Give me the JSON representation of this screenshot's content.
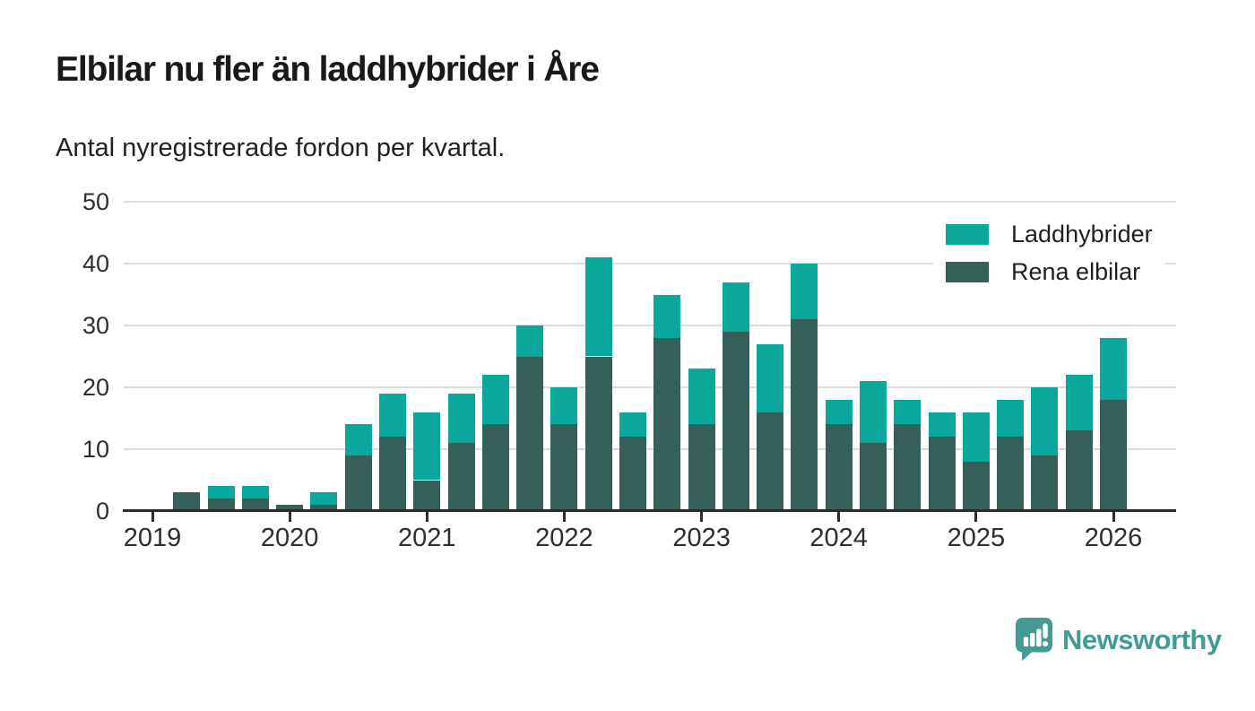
{
  "chart_data": {
    "type": "bar",
    "stacked": true,
    "title": "Elbilar nu fler än laddhybrider i Åre",
    "subtitle": "Antal nyregistrerade fordon per kvartal.",
    "categories": [
      "2019 Q1",
      "2019 Q2",
      "2019 Q3",
      "2019 Q4",
      "2020 Q1",
      "2020 Q2",
      "2020 Q3",
      "2020 Q4",
      "2021 Q1",
      "2021 Q2",
      "2021 Q3",
      "2021 Q4",
      "2022 Q1",
      "2022 Q2",
      "2022 Q3",
      "2022 Q4",
      "2023 Q1",
      "2023 Q2",
      "2023 Q3",
      "2023 Q4",
      "2024 Q1",
      "2024 Q2",
      "2024 Q3",
      "2024 Q4",
      "2025 Q1",
      "2025 Q2",
      "2025 Q3",
      "2025 Q4",
      "2026 Q1"
    ],
    "series": [
      {
        "name": "Laddhybrider",
        "stack_position": "top",
        "color": "#0aa89c",
        "values": [
          0,
          0,
          2,
          2,
          0,
          2,
          5,
          7,
          11,
          8,
          8,
          5,
          6,
          16,
          4,
          7,
          9,
          8,
          11,
          9,
          4,
          10,
          4,
          4,
          8,
          6,
          11,
          9,
          10
        ]
      },
      {
        "name": "Rena elbilar",
        "stack_position": "bottom",
        "color": "#35605a",
        "values": [
          0,
          3,
          2,
          2,
          1,
          1,
          9,
          12,
          5,
          11,
          14,
          25,
          14,
          25,
          12,
          28,
          14,
          29,
          16,
          31,
          14,
          11,
          14,
          12,
          8,
          12,
          9,
          13,
          18
        ]
      }
    ],
    "ylim": [
      0,
      50
    ],
    "yticks": [
      0,
      10,
      20,
      30,
      40,
      50
    ],
    "xticks": [
      {
        "label": "2019",
        "quarter_index": 0
      },
      {
        "label": "2020",
        "quarter_index": 4
      },
      {
        "label": "2021",
        "quarter_index": 8
      },
      {
        "label": "2022",
        "quarter_index": 12
      },
      {
        "label": "2023",
        "quarter_index": 16
      },
      {
        "label": "2024",
        "quarter_index": 20
      },
      {
        "label": "2025",
        "quarter_index": 24
      },
      {
        "label": "2026",
        "quarter_index": 28
      }
    ],
    "grid": "horizontal",
    "legend_position": "top-right"
  },
  "legend": {
    "items": [
      {
        "label": "Laddhybrider",
        "color": "#0aa89c"
      },
      {
        "label": "Rena elbilar",
        "color": "#35605a"
      }
    ]
  },
  "footer": {
    "brand": "Newsworthy",
    "brand_color": "#3f9b94"
  }
}
